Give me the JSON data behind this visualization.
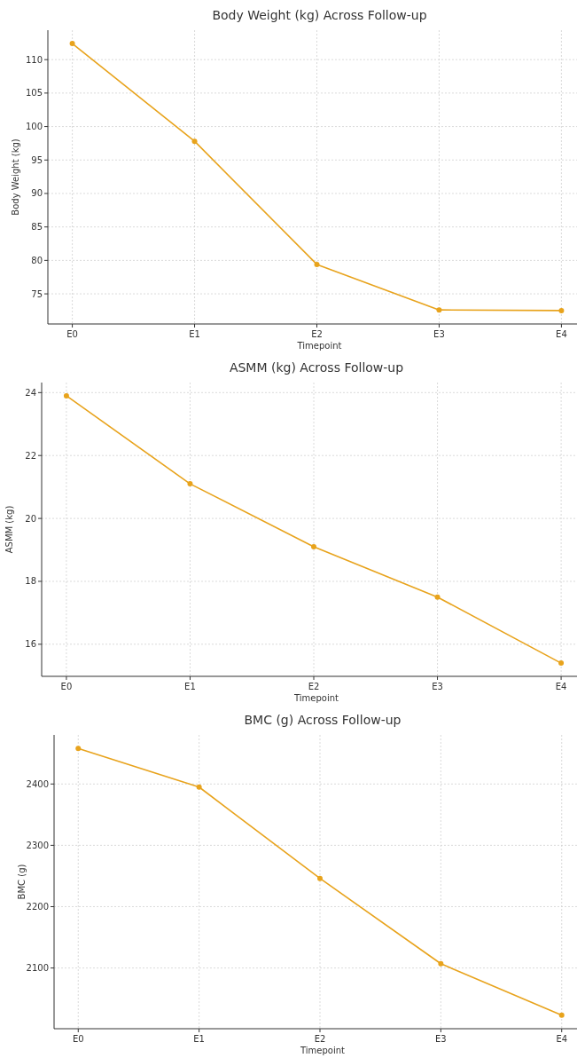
{
  "chart_data": [
    {
      "type": "line",
      "title": "Body Weight (kg) Across Follow-up",
      "xlabel": "Timepoint",
      "ylabel": "Body Weight (kg)",
      "categories": [
        "E0",
        "E1",
        "E2",
        "E3",
        "E4"
      ],
      "series": [
        {
          "color": "#e8a31c",
          "values": [
            112.4,
            97.8,
            79.4,
            72.6,
            72.5
          ]
        }
      ],
      "ylim": [
        70.5,
        114.4
      ],
      "yticks": [
        75,
        80,
        85,
        90,
        95,
        100,
        105,
        110
      ],
      "grid": true,
      "marker": "circle",
      "line_style": "solid"
    },
    {
      "type": "line",
      "title": "ASMM (kg) Across Follow-up",
      "xlabel": "Timepoint",
      "ylabel": "ASMM (kg)",
      "categories": [
        "E0",
        "E1",
        "E2",
        "E3",
        "E4"
      ],
      "series": [
        {
          "color": "#e8a31c",
          "values": [
            23.9,
            21.1,
            19.1,
            17.5,
            15.4
          ]
        }
      ],
      "ylim": [
        14.98,
        24.32
      ],
      "yticks": [
        16,
        18,
        20,
        22,
        24
      ],
      "grid": true,
      "marker": "circle",
      "line_style": "solid"
    },
    {
      "type": "line",
      "title": "BMC (g) Across Follow-up",
      "xlabel": "Timepoint",
      "ylabel": "BMC (g)",
      "categories": [
        "E0",
        "E1",
        "E2",
        "E3",
        "E4"
      ],
      "series": [
        {
          "color": "#e8a31c",
          "values": [
            2458,
            2395,
            2246,
            2107,
            2023
          ]
        }
      ],
      "ylim": [
        2001,
        2480
      ],
      "yticks": [
        2100,
        2200,
        2300,
        2400
      ],
      "grid": true,
      "marker": "circle",
      "line_style": "solid"
    }
  ]
}
